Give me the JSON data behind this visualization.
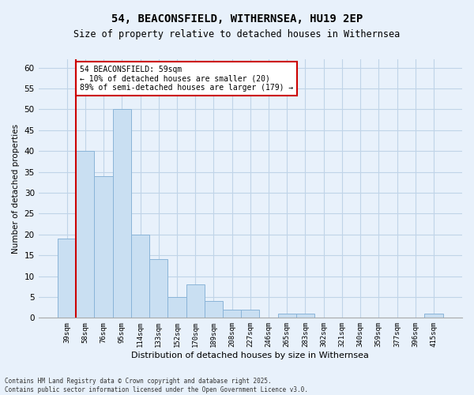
{
  "title": "54, BEACONSFIELD, WITHERNSEA, HU19 2EP",
  "subtitle": "Size of property relative to detached houses in Withernsea",
  "xlabel": "Distribution of detached houses by size in Withernsea",
  "ylabel": "Number of detached properties",
  "categories": [
    "39sqm",
    "58sqm",
    "76sqm",
    "95sqm",
    "114sqm",
    "133sqm",
    "152sqm",
    "170sqm",
    "189sqm",
    "208sqm",
    "227sqm",
    "246sqm",
    "265sqm",
    "283sqm",
    "302sqm",
    "321sqm",
    "340sqm",
    "359sqm",
    "377sqm",
    "396sqm",
    "415sqm"
  ],
  "values": [
    19,
    40,
    34,
    50,
    20,
    14,
    5,
    8,
    4,
    2,
    2,
    0,
    1,
    1,
    0,
    0,
    0,
    0,
    0,
    0,
    1
  ],
  "bar_color": "#c9dff2",
  "bar_edge_color": "#8ab4d8",
  "grid_color": "#c0d4e8",
  "background_color": "#e8f1fb",
  "red_line_index": 1,
  "annotation_text": "54 BEACONSFIELD: 59sqm\n← 10% of detached houses are smaller (20)\n89% of semi-detached houses are larger (179) →",
  "annotation_box_color": "#ffffff",
  "annotation_box_edge": "#cc0000",
  "footer_text": "Contains HM Land Registry data © Crown copyright and database right 2025.\nContains public sector information licensed under the Open Government Licence v3.0.",
  "ylim": [
    0,
    62
  ],
  "yticks": [
    0,
    5,
    10,
    15,
    20,
    25,
    30,
    35,
    40,
    45,
    50,
    55,
    60
  ],
  "title_fontsize": 10,
  "subtitle_fontsize": 8.5
}
